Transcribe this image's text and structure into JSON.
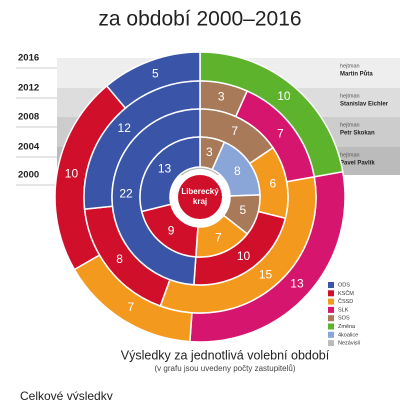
{
  "title": "za období 2000–2016",
  "years": [
    "2016",
    "2012",
    "2008",
    "2004",
    "2000"
  ],
  "governors": [
    {
      "role": "hejtman",
      "name": "Martin Půta"
    },
    {
      "role": "hejtman",
      "name": "Stanislav Eichler"
    },
    {
      "role": "hejtman",
      "name": "Petr Skokan"
    },
    {
      "role": "hejtman",
      "name": "Pavel Pavlík"
    }
  ],
  "rings": [
    {
      "segments": [
        {
          "value": 10,
          "color": "#5db42c"
        },
        {
          "value": 13,
          "color": "#d6166e"
        },
        {
          "value": 7,
          "color": "#f39a1e"
        },
        {
          "value": 10,
          "color": "#d0102a"
        },
        {
          "value": 5,
          "color": "#3a55a8"
        }
      ]
    },
    {
      "segments": [
        {
          "value": 3,
          "color": "#a87a5a"
        },
        {
          "value": 7,
          "color": "#d6166e"
        },
        {
          "value": 15,
          "color": "#f39a1e"
        },
        {
          "value": 8,
          "color": "#d0102a"
        },
        {
          "value": 12,
          "color": "#3a55a8"
        }
      ]
    },
    {
      "segments": [
        {
          "value": 7,
          "color": "#a87a5a"
        },
        {
          "value": 6,
          "color": "#f39a1e"
        },
        {
          "value": 10,
          "color": "#d0102a"
        },
        {
          "value": 22,
          "color": "#3a55a8"
        }
      ]
    },
    {
      "segments": [
        {
          "value": 3,
          "color": "#a87a5a"
        },
        {
          "value": 8,
          "color": "#8aa6d9"
        },
        {
          "value": 5,
          "color": "#a87a5a"
        },
        {
          "value": 7,
          "color": "#f39a1e"
        },
        {
          "value": 9,
          "color": "#d0102a"
        },
        {
          "value": 13,
          "color": "#3a55a8"
        }
      ]
    }
  ],
  "logo": [
    "Liberecký",
    "kraj"
  ],
  "legend": [
    {
      "name": "ODS",
      "color": "#3a55a8"
    },
    {
      "name": "KSČM",
      "color": "#d0102a"
    },
    {
      "name": "ČSSD",
      "color": "#f39a1e"
    },
    {
      "name": "SLK",
      "color": "#d6166e"
    },
    {
      "name": "SOS",
      "color": "#a87a5a"
    },
    {
      "name": "Změna",
      "color": "#5db42c"
    },
    {
      "name": "4koalice",
      "color": "#8aa6d9"
    },
    {
      "name": "Nezávislí",
      "color": "#bbbbbb"
    }
  ],
  "caption": "Výsledky za jednotlivá  volební období",
  "note": "(v grafu jsou uvedeny počty zastupitelů)",
  "section": "Celkové výsledky"
}
